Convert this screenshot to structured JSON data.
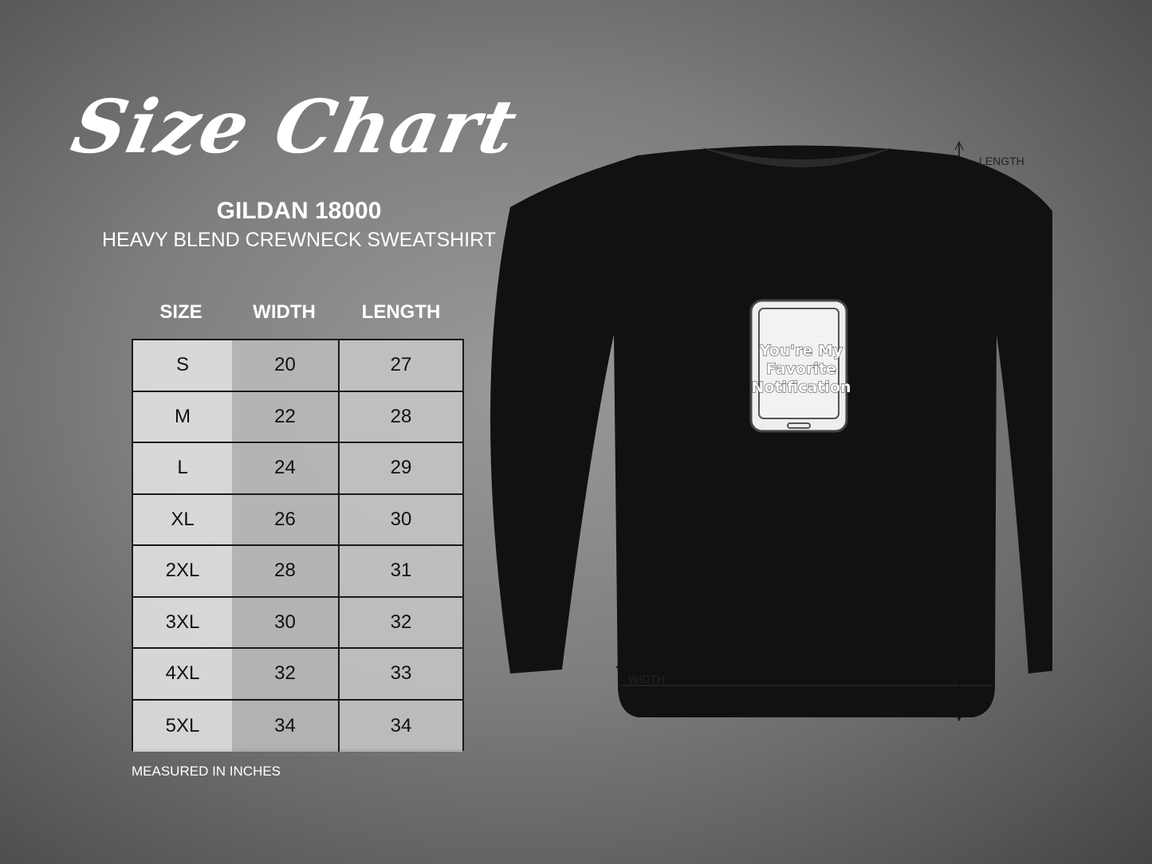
{
  "title": "Size Chart",
  "brand": "GILDAN 18000",
  "subtitle": "HEAVY BLEND CREWNECK SWEATSHIRT",
  "table": {
    "headers": [
      "SIZE",
      "WIDTH",
      "LENGTH"
    ],
    "rows": [
      [
        "S",
        "20",
        "27"
      ],
      [
        "M",
        "22",
        "28"
      ],
      [
        "L",
        "24",
        "29"
      ],
      [
        "XL",
        "26",
        "30"
      ],
      [
        "2XL",
        "28",
        "31"
      ],
      [
        "3XL",
        "30",
        "32"
      ],
      [
        "4XL",
        "32",
        "33"
      ],
      [
        "5XL",
        "34",
        "34"
      ]
    ]
  },
  "note": "MEASURED IN INCHES",
  "diagram": {
    "length_label": "LENGTH",
    "width_label": "WIDTH"
  },
  "design": {
    "line1": "You're My",
    "line2": "Favorite",
    "line3": "Notification",
    "icon": "smartphone-icon"
  },
  "colors": {
    "shirt": "#111111",
    "print": "#e8e8e8"
  }
}
